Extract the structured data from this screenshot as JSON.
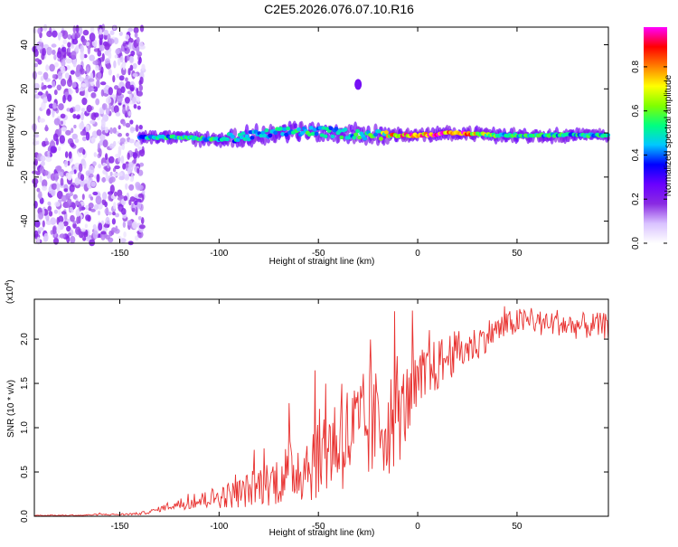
{
  "figure": {
    "title": "C2E5.2026.076.07.10.R16"
  },
  "chart_data": [
    {
      "type": "heatmap",
      "xlabel": "Height of straight line (km)",
      "ylabel": "Frequency (Hz)",
      "xlim": [
        -193,
        96
      ],
      "ylim": [
        -50,
        48
      ],
      "xticks": [
        -150,
        -100,
        -50,
        0,
        50
      ],
      "yticks": [
        -40,
        -20,
        0,
        20,
        40
      ],
      "colorbar": {
        "label": "Normalized spectral amplitude",
        "range": [
          0,
          0.98
        ],
        "ticks": [
          0.0,
          0.2,
          0.4,
          0.6,
          0.8
        ],
        "colormap": [
          "#ffffff",
          "#d9c2ff",
          "#8a2be2",
          "#6a00ff",
          "#0000ff",
          "#00c8ff",
          "#00ff80",
          "#80ff00",
          "#ffff00",
          "#ff8000",
          "#ff0000",
          "#ff00ff"
        ]
      },
      "features": [
        {
          "name": "noise band",
          "x_range": [
            -193,
            -138
          ],
          "freq_range": [
            -50,
            48
          ],
          "amplitude": 0.12
        },
        {
          "name": "carrier trace",
          "x": [
            -140,
            -120,
            -100,
            -80,
            -60,
            -40,
            -20,
            -10,
            0,
            20,
            40,
            60,
            80,
            96
          ],
          "freq": [
            -2,
            -2,
            -3,
            -1,
            1,
            0,
            -1,
            -1,
            -1,
            0,
            -1,
            -1,
            -1,
            -1
          ],
          "amplitude": [
            0.45,
            0.5,
            0.5,
            0.45,
            0.5,
            0.5,
            0.55,
            0.8,
            0.85,
            0.9,
            0.55,
            0.5,
            0.5,
            0.5
          ]
        },
        {
          "name": "blob",
          "x": -30,
          "freq": 22,
          "amplitude": 0.15
        }
      ]
    },
    {
      "type": "line",
      "xlabel": "Height of straight line (km)",
      "ylabel": "SNR (10 * v/v)",
      "multiplier": "(x10",
      "multiplier_exp": "4",
      "multiplier_close": ")",
      "xlim": [
        -193,
        96
      ],
      "ylim": [
        0,
        2.45
      ],
      "xticks": [
        -150,
        -100,
        -50,
        0,
        50
      ],
      "yticks": [
        0.0,
        0.5,
        1.0,
        1.5,
        2.0
      ],
      "ytick_labels": [
        "0.0",
        "0.5",
        "1.0",
        "1.5",
        "2.0"
      ],
      "color": "#e8312f",
      "series": [
        {
          "name": "SNR",
          "x": [
            -193,
            -180,
            -170,
            -160,
            -150,
            -140,
            -135,
            -130,
            -125,
            -120,
            -115,
            -110,
            -105,
            -100,
            -95,
            -90,
            -85,
            -80,
            -75,
            -70,
            -65,
            -60,
            -55,
            -50,
            -45,
            -40,
            -35,
            -30,
            -25,
            -20,
            -15,
            -10,
            -5,
            0,
            5,
            10,
            15,
            20,
            25,
            30,
            35,
            40,
            45,
            50,
            55,
            60,
            65,
            70,
            75,
            80,
            85,
            90,
            96
          ],
          "values": [
            0.01,
            0.01,
            0.01,
            0.02,
            0.02,
            0.03,
            0.05,
            0.08,
            0.12,
            0.13,
            0.15,
            0.17,
            0.2,
            0.22,
            0.24,
            0.26,
            0.3,
            0.35,
            0.38,
            0.42,
            0.5,
            0.55,
            0.6,
            0.7,
            0.8,
            0.85,
            0.9,
            0.95,
            1.0,
            1.05,
            1.05,
            1.1,
            1.3,
            1.45,
            1.6,
            1.7,
            1.8,
            1.85,
            1.9,
            1.95,
            2.05,
            2.1,
            2.15,
            2.2,
            2.2,
            2.2,
            2.15,
            2.2,
            2.15,
            2.15,
            2.15,
            2.15,
            2.15
          ],
          "noise": [
            0.005,
            0.005,
            0.005,
            0.008,
            0.01,
            0.015,
            0.02,
            0.03,
            0.05,
            0.06,
            0.07,
            0.09,
            0.11,
            0.13,
            0.15,
            0.17,
            0.2,
            0.23,
            0.26,
            0.3,
            0.35,
            0.4,
            0.45,
            0.5,
            0.55,
            0.6,
            0.62,
            0.65,
            0.65,
            0.62,
            0.6,
            0.55,
            0.45,
            0.4,
            0.35,
            0.3,
            0.28,
            0.25,
            0.22,
            0.2,
            0.18,
            0.17,
            0.16,
            0.15,
            0.15,
            0.15,
            0.15,
            0.15,
            0.15,
            0.15,
            0.15,
            0.15,
            0.15
          ]
        }
      ]
    }
  ]
}
